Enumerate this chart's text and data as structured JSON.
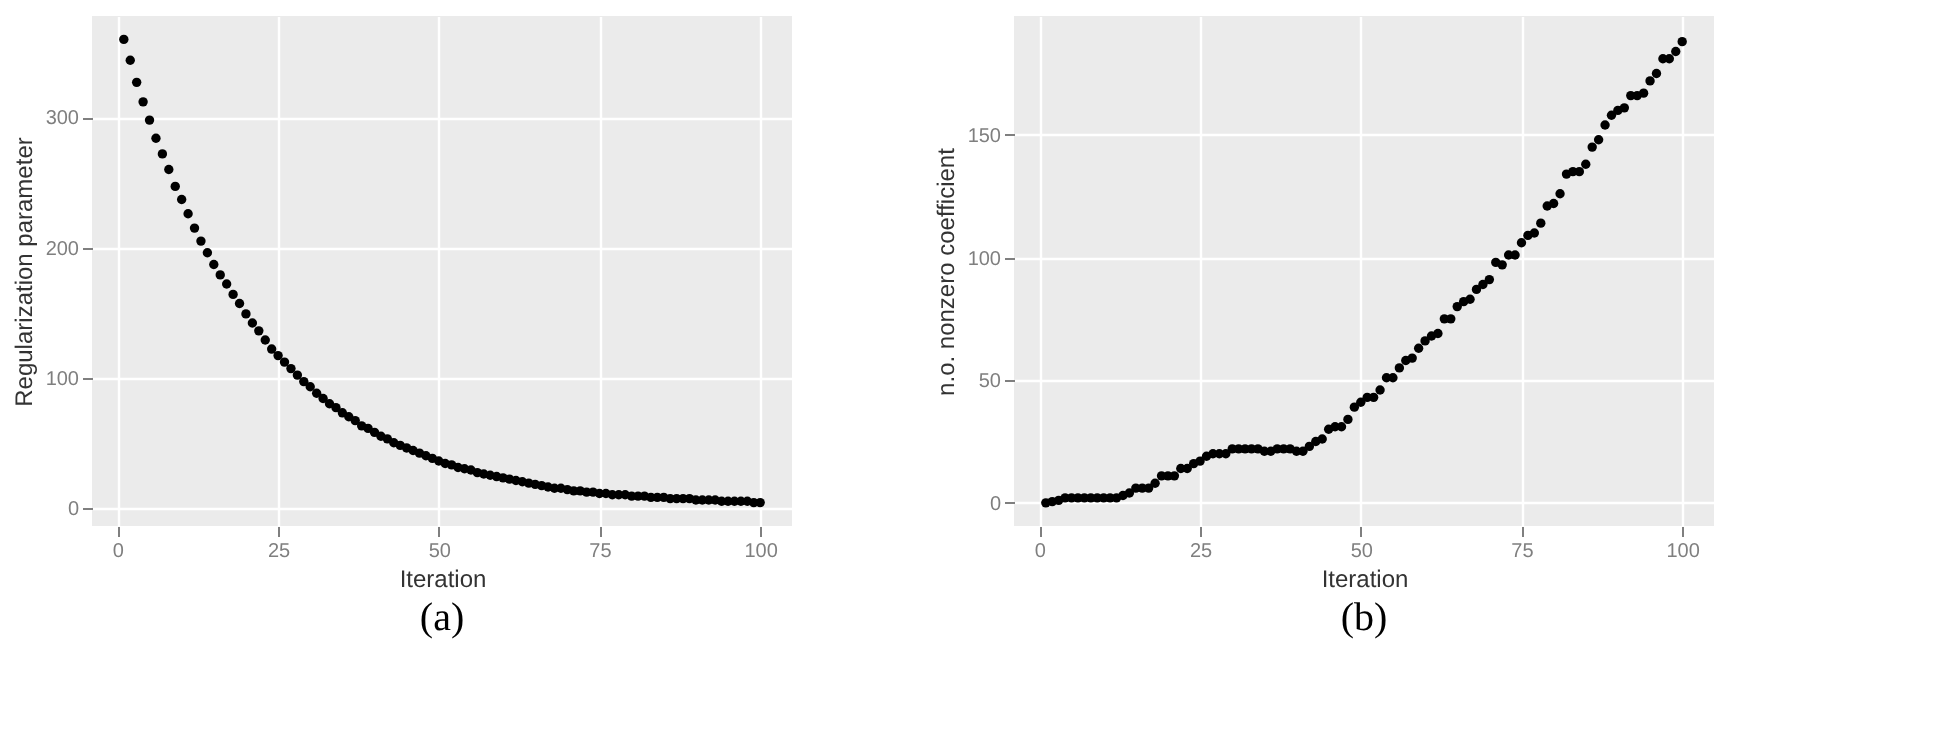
{
  "chart_data": [
    {
      "type": "scatter",
      "title": "(a)",
      "xlabel": "Iteration",
      "ylabel": "Regularization parameter",
      "marker": "circle",
      "grid": true,
      "x": [
        1,
        2,
        3,
        4,
        5,
        6,
        7,
        8,
        9,
        10,
        11,
        12,
        13,
        14,
        15,
        16,
        17,
        18,
        19,
        20,
        21,
        22,
        23,
        24,
        25,
        26,
        27,
        28,
        29,
        30,
        31,
        32,
        33,
        34,
        35,
        36,
        37,
        38,
        39,
        40,
        41,
        42,
        43,
        44,
        45,
        46,
        47,
        48,
        49,
        50,
        51,
        52,
        53,
        54,
        55,
        56,
        57,
        58,
        59,
        60,
        61,
        62,
        63,
        64,
        65,
        66,
        67,
        68,
        69,
        70,
        71,
        72,
        73,
        74,
        75,
        76,
        77,
        78,
        79,
        80,
        81,
        82,
        83,
        84,
        85,
        86,
        87,
        88,
        89,
        90,
        91,
        92,
        93,
        94,
        95,
        96,
        97,
        98,
        99,
        100
      ],
      "series": [
        {
          "color": "#000000",
          "values": [
            360,
            344,
            327,
            312,
            298,
            284,
            272,
            260,
            247,
            237,
            226,
            215,
            205,
            196,
            187,
            179,
            172,
            164,
            157,
            149,
            142,
            136,
            129,
            122,
            117,
            112,
            107,
            102,
            97,
            93,
            88,
            84,
            80,
            77,
            73,
            70,
            67,
            63,
            61,
            58,
            55,
            53,
            50,
            48,
            46,
            44,
            42,
            40,
            38,
            36,
            34,
            33,
            31,
            30,
            29,
            27,
            26,
            25,
            24,
            23,
            22,
            21,
            20,
            19,
            18,
            17,
            16,
            15,
            15,
            14,
            13,
            13,
            12,
            12,
            11,
            11,
            10,
            10,
            10,
            9,
            9,
            9,
            8,
            8,
            8,
            7,
            7,
            7,
            7,
            6,
            6,
            6,
            6,
            5,
            5,
            5,
            5,
            5,
            4,
            4
          ]
        }
      ],
      "xlim": [
        -3.95,
        104.95
      ],
      "xticks": [
        0,
        25,
        50,
        75,
        100
      ],
      "ylim": [
        -14,
        378
      ],
      "yticks": [
        0,
        100,
        200,
        300
      ]
    },
    {
      "type": "scatter",
      "title": "(b)",
      "xlabel": "Iteration",
      "ylabel": "n.o. nonzero coefficient",
      "marker": "circle",
      "grid": true,
      "x": [
        1,
        2,
        3,
        4,
        5,
        6,
        7,
        8,
        9,
        10,
        11,
        12,
        13,
        14,
        15,
        16,
        17,
        18,
        19,
        20,
        21,
        22,
        23,
        24,
        25,
        26,
        27,
        28,
        29,
        30,
        31,
        32,
        33,
        34,
        35,
        36,
        37,
        38,
        39,
        40,
        41,
        42,
        43,
        44,
        45,
        46,
        47,
        48,
        49,
        50,
        51,
        52,
        53,
        54,
        55,
        56,
        57,
        58,
        59,
        60,
        61,
        62,
        63,
        64,
        65,
        66,
        67,
        68,
        69,
        70,
        71,
        72,
        73,
        74,
        75,
        76,
        77,
        78,
        79,
        80,
        81,
        82,
        83,
        84,
        85,
        86,
        87,
        88,
        89,
        90,
        91,
        92,
        93,
        94,
        95,
        96,
        97,
        98,
        99,
        100
      ],
      "series": [
        {
          "color": "#000000",
          "values": [
            0,
            0.5,
            1,
            2,
            2,
            2,
            2,
            2,
            2,
            2,
            2,
            2,
            3,
            4,
            6,
            6,
            6,
            8,
            11,
            11,
            11,
            14,
            14,
            16,
            17,
            19,
            20,
            20,
            20,
            22,
            22,
            22,
            22,
            22,
            21,
            21,
            22,
            22,
            22,
            21,
            21,
            23,
            25,
            26,
            30,
            31,
            31,
            34,
            39,
            41,
            43,
            43,
            46,
            51,
            51,
            55,
            58,
            59,
            63,
            66,
            68,
            69,
            75,
            75,
            80,
            82,
            83,
            87,
            89,
            91,
            98,
            97,
            101,
            101,
            106,
            109,
            110,
            114,
            121,
            122,
            126,
            134,
            135,
            135,
            138,
            145,
            148,
            154,
            158,
            160,
            161,
            166,
            166,
            167,
            172,
            175,
            181,
            181,
            184,
            188
          ]
        }
      ],
      "xlim": [
        -3.95,
        104.95
      ],
      "xticks": [
        0,
        25,
        50,
        75,
        100
      ],
      "ylim": [
        -9.45,
        198.45
      ],
      "yticks": [
        0,
        50,
        100,
        150
      ]
    }
  ]
}
